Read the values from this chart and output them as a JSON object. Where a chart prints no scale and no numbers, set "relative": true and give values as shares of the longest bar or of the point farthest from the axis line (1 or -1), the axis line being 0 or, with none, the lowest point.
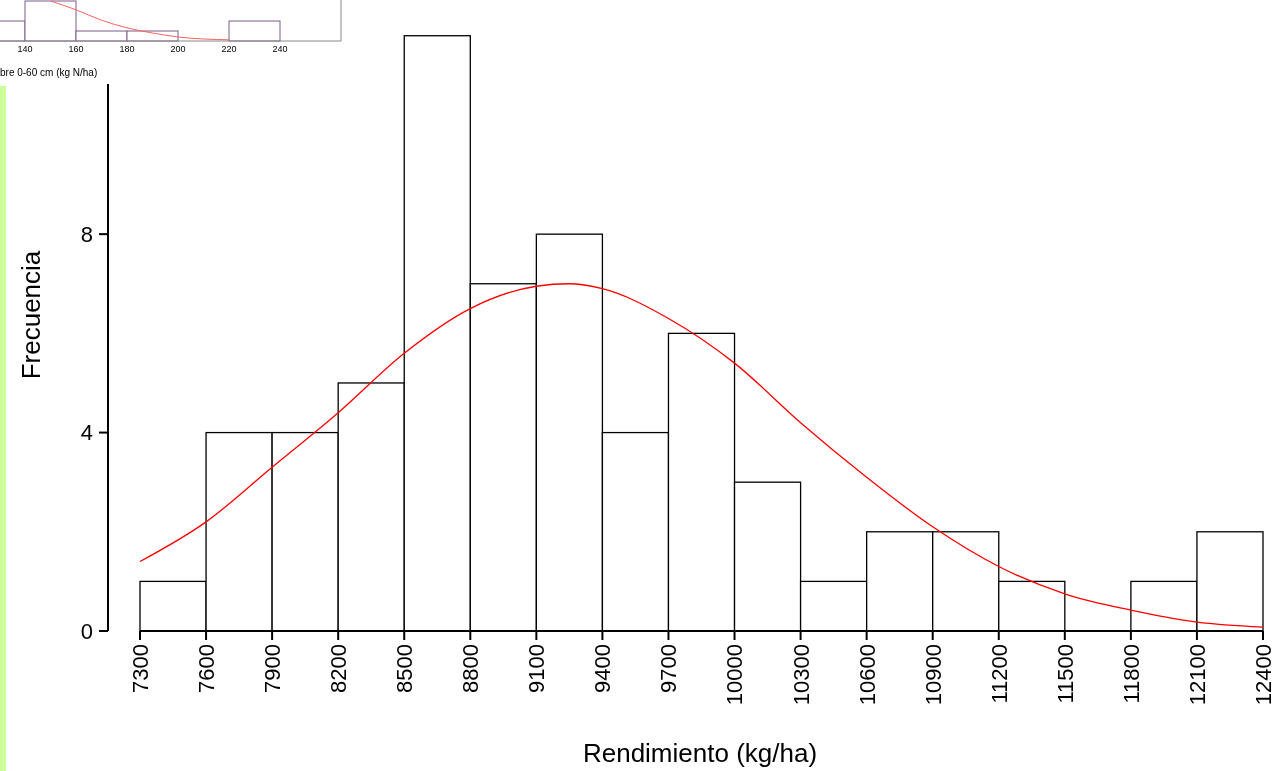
{
  "chart_data": [
    {
      "type": "histogram",
      "xlabel": "bre 0-60 cm (kg N/ha)",
      "relative": true,
      "bins": [
        130,
        140,
        160,
        180,
        200,
        220,
        240
      ],
      "values": [
        0.5,
        1,
        0.25,
        0.25,
        0,
        0.5
      ],
      "color": "#7a5a8a",
      "xlim": [
        130,
        264
      ],
      "xticks": [
        140,
        160,
        180,
        200,
        220,
        240
      ],
      "tick_labels": "x",
      "series": [
        {
          "type": "line",
          "color": "#ff6060",
          "x": [
            150,
            160,
            170,
            180,
            190,
            200,
            210,
            220
          ],
          "values": [
            1,
            0.78,
            0.52,
            0.33,
            0.2,
            0.1,
            0.05,
            0.03
          ]
        }
      ]
    },
    {
      "type": "histogram",
      "xlabel": "Rendimiento (kg/ha)",
      "ylabel": "Frecuencia",
      "bins": [
        7300,
        7600,
        7900,
        8200,
        8500,
        8800,
        9100,
        9400,
        9700,
        10000,
        10300,
        10600,
        10900,
        11200,
        11500,
        11800,
        12100,
        12400
      ],
      "values": [
        1,
        4,
        4,
        5,
        12,
        7,
        8,
        4,
        6,
        3,
        1,
        2,
        2,
        1,
        0,
        1,
        2
      ],
      "color": "#000000",
      "xlim": [
        7300,
        12400
      ],
      "xticks": [
        7300,
        7600,
        7900,
        8200,
        8500,
        8800,
        9100,
        9400,
        9700,
        10000,
        10300,
        10600,
        10900,
        11200,
        11500,
        11800,
        12100,
        12400
      ],
      "ylim": [
        0,
        12.7
      ],
      "yticks": [
        0,
        4,
        8
      ],
      "series": [
        {
          "type": "line",
          "color": "#ff0000",
          "x": [
            7300,
            7600,
            7900,
            8200,
            8500,
            8800,
            9100,
            9250,
            9400,
            9700,
            10000,
            10300,
            10600,
            10900,
            11200,
            11500,
            11800,
            12100,
            12400
          ],
          "values": [
            1.4,
            2.2,
            3.3,
            4.4,
            5.6,
            6.5,
            6.95,
            7.0,
            6.9,
            6.3,
            5.4,
            4.2,
            3.1,
            2.1,
            1.3,
            0.75,
            0.42,
            0.18,
            0.08
          ]
        }
      ]
    }
  ]
}
